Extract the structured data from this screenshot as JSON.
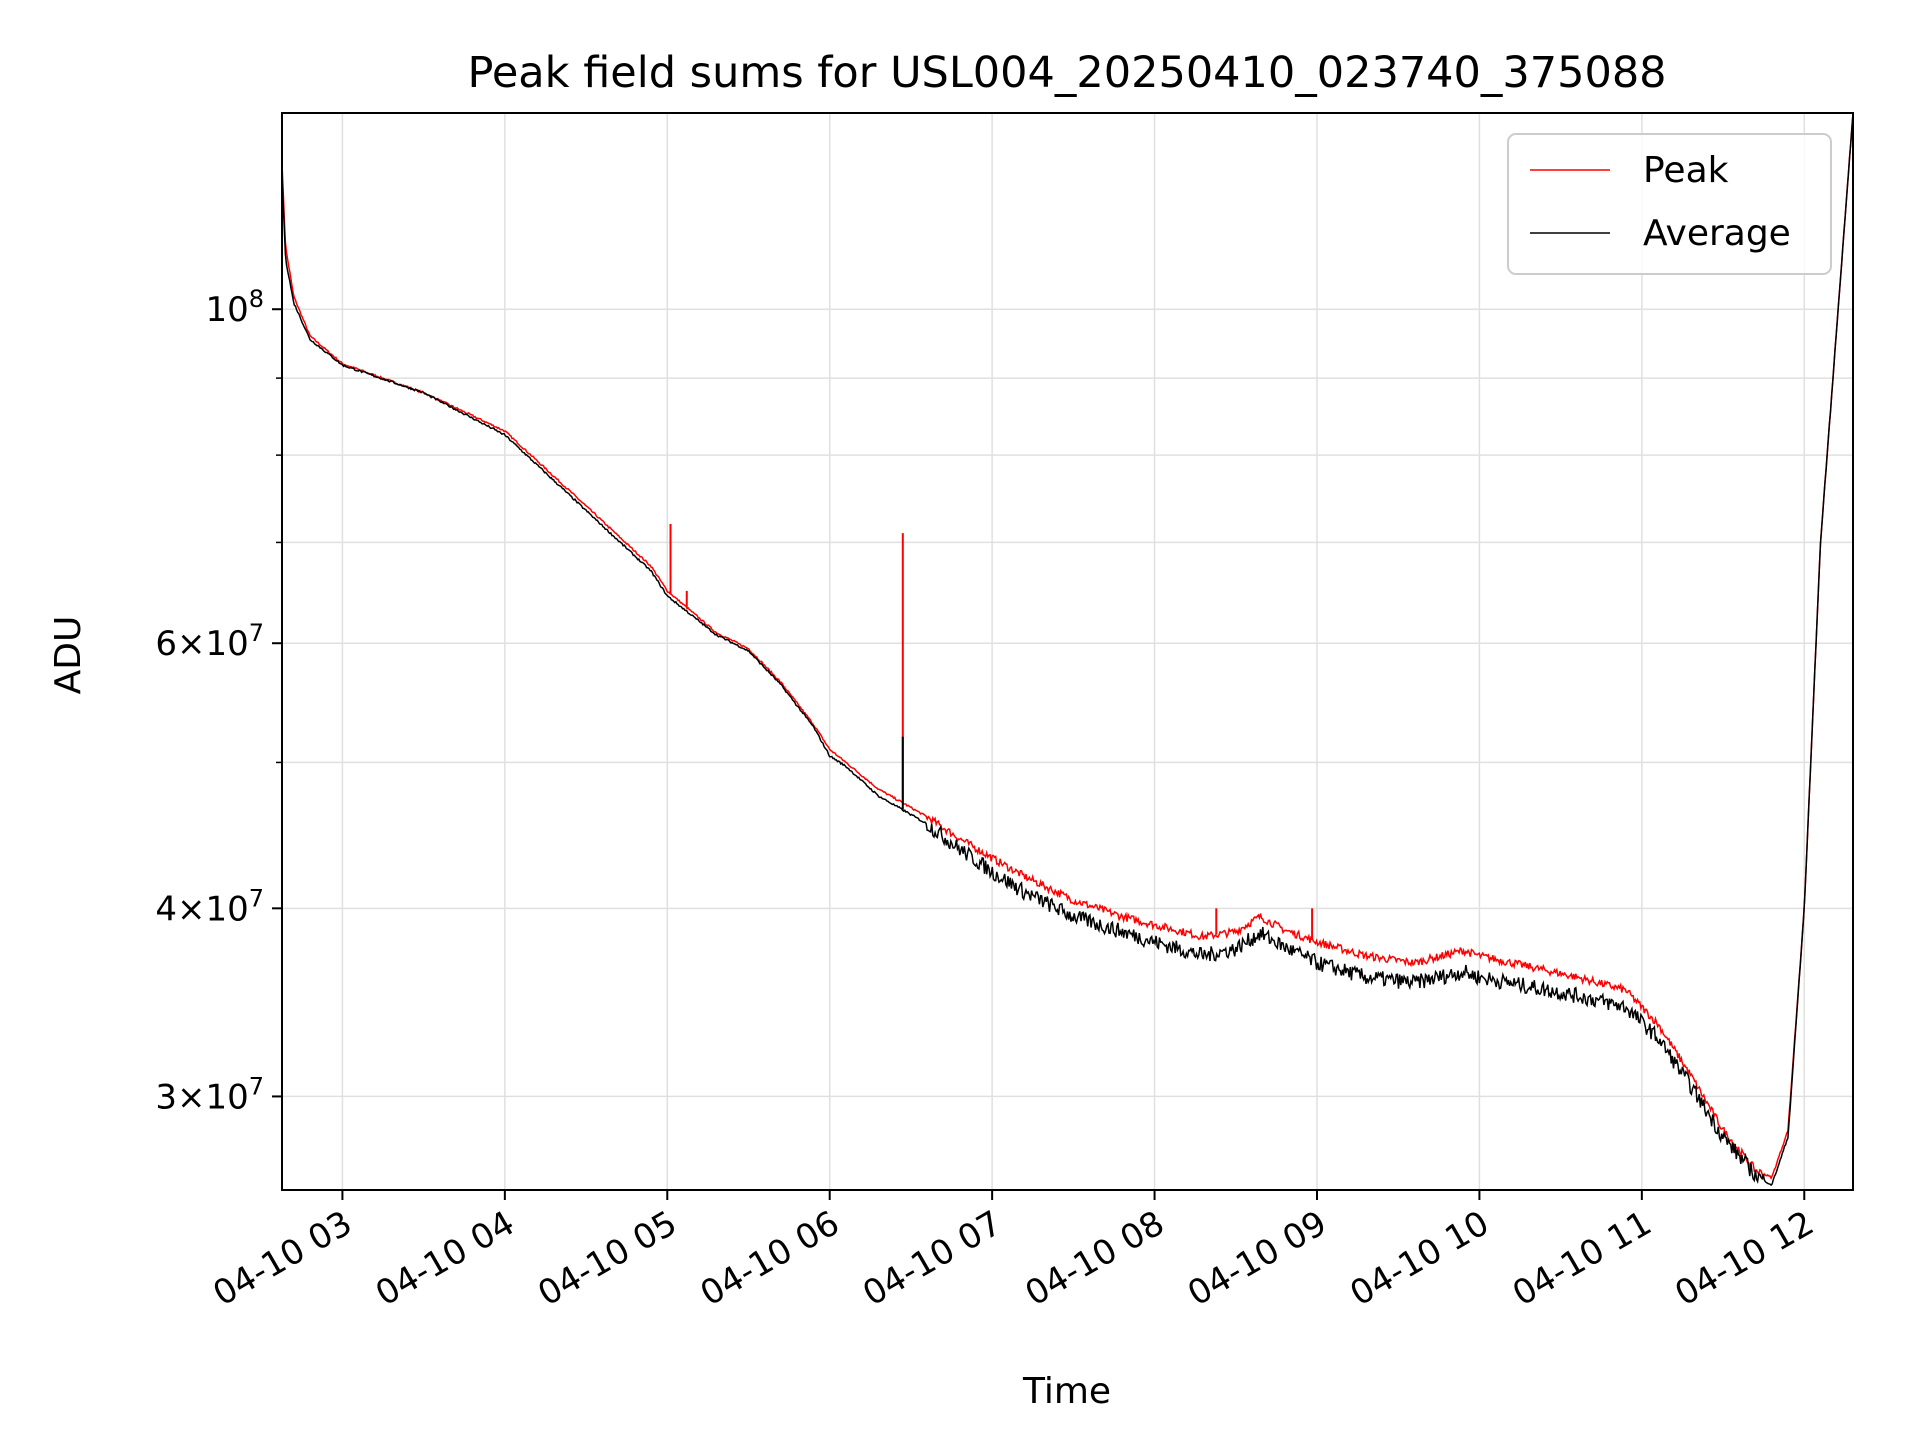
{
  "chart_data": {
    "type": "line",
    "title": "Peak field sums for USL004_20250410_023740_375088",
    "xlabel": "Time",
    "ylabel": "ADU",
    "yscale": "log",
    "ylim": [
      26000000,
      135000000
    ],
    "xlim": [
      "04-10 02:37:40",
      "04-10 12:17"
    ],
    "grid": true,
    "legend_position": "top-right",
    "x_ticks": [
      "04-10 03",
      "04-10 04",
      "04-10 05",
      "04-10 06",
      "04-10 07",
      "04-10 08",
      "04-10 09",
      "04-10 10",
      "04-10 11",
      "04-10 12"
    ],
    "x_tick_hours": [
      3,
      4,
      5,
      6,
      7,
      8,
      9,
      10,
      11,
      12
    ],
    "y_major_ticks": [
      {
        "value": 100000000,
        "base": "10",
        "exp": "8"
      },
      {
        "value": 60000000,
        "base": "6×10",
        "exp": "7"
      },
      {
        "value": 40000000,
        "base": "4×10",
        "exp": "7"
      },
      {
        "value": 30000000,
        "base": "3×10",
        "exp": "7"
      }
    ],
    "y_minor_ticks": [
      50000000,
      70000000,
      80000000,
      90000000
    ],
    "series": [
      {
        "name": "Peak",
        "color": "#ff0000",
        "x_hours": [
          2.628,
          2.65,
          2.7,
          2.8,
          3.0,
          3.5,
          4.0,
          4.5,
          4.9,
          5.0,
          5.3,
          5.5,
          5.7,
          5.9,
          6.0,
          6.1,
          6.3,
          6.45,
          6.6,
          6.8,
          7.0,
          7.2,
          7.5,
          7.8,
          8.0,
          8.3,
          8.5,
          8.65,
          8.8,
          9.0,
          9.3,
          9.6,
          9.9,
          10.0,
          10.3,
          10.6,
          10.9,
          11.1,
          11.3,
          11.5,
          11.7,
          11.8,
          11.9,
          12.0,
          12.1,
          12.3
        ],
        "values": [
          125000000,
          110000000,
          102000000,
          96000000,
          92000000,
          88000000,
          83000000,
          74000000,
          67500000,
          65000000,
          61000000,
          59500000,
          56500000,
          53000000,
          51000000,
          50000000,
          48000000,
          47000000,
          46000000,
          44500000,
          43200000,
          42000000,
          40500000,
          39500000,
          39000000,
          38300000,
          38600000,
          39500000,
          38700000,
          38000000,
          37200000,
          36800000,
          37500000,
          37200000,
          36600000,
          36000000,
          35300000,
          33500000,
          31000000,
          28500000,
          26800000,
          26500000,
          28500000,
          40000000,
          70000000,
          135000000
        ],
        "spikes": [
          {
            "x_hour": 5.02,
            "value": 72000000
          },
          {
            "x_hour": 5.12,
            "value": 65000000
          },
          {
            "x_hour": 6.45,
            "value": 71000000
          },
          {
            "x_hour": 6.15,
            "value": 49500000
          },
          {
            "x_hour": 8.38,
            "value": 40000000
          },
          {
            "x_hour": 8.97,
            "value": 40000000
          }
        ]
      },
      {
        "name": "Average",
        "color": "#000000",
        "x_hours": [
          2.628,
          2.65,
          2.7,
          2.8,
          3.0,
          3.5,
          4.0,
          4.5,
          4.9,
          5.0,
          5.3,
          5.5,
          5.7,
          5.9,
          6.0,
          6.1,
          6.3,
          6.45,
          6.6,
          6.8,
          7.0,
          7.2,
          7.5,
          7.8,
          8.0,
          8.3,
          8.5,
          8.65,
          8.8,
          9.0,
          9.3,
          9.6,
          9.9,
          10.0,
          10.3,
          10.6,
          10.9,
          11.1,
          11.3,
          11.5,
          11.7,
          11.8,
          11.9,
          12.0,
          12.1,
          12.3
        ],
        "values": [
          123000000,
          108000000,
          101000000,
          95500000,
          91800000,
          88000000,
          82500000,
          73500000,
          67000000,
          64500000,
          60800000,
          59300000,
          56300000,
          52800000,
          50500000,
          49700000,
          47500000,
          46500000,
          45500000,
          43800000,
          42300000,
          41000000,
          39500000,
          38600000,
          38000000,
          37200000,
          37600000,
          38500000,
          37700000,
          36800000,
          36000000,
          35700000,
          36300000,
          36000000,
          35500000,
          35000000,
          34400000,
          32800000,
          30500000,
          28200000,
          26600000,
          26200000,
          28200000,
          40000000,
          70000000,
          135000000
        ],
        "spikes": [
          {
            "x_hour": 6.45,
            "value": 52000000
          }
        ]
      }
    ]
  }
}
